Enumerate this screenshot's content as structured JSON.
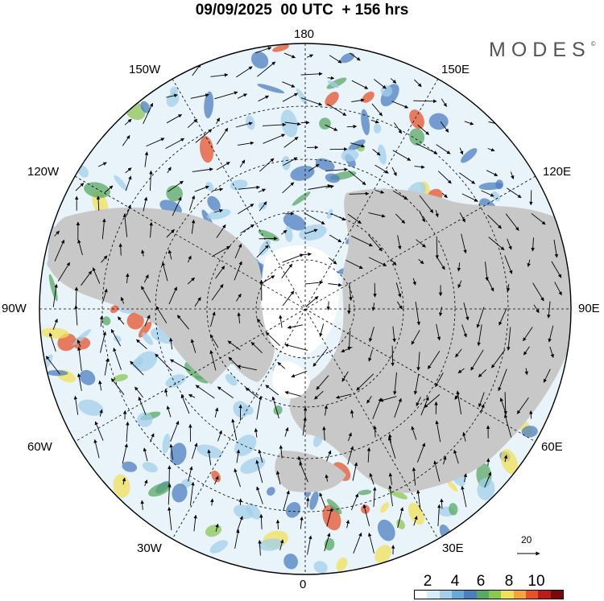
{
  "title": "09/09/2025  00 UTC  + 156 hrs",
  "brand": "MODES",
  "brand_mark": "©",
  "longitude_labels": {
    "top": "180",
    "top_left": "150W",
    "top_right": "150E",
    "upper_left": "120W",
    "upper_right": "120E",
    "left": "90W",
    "right": "90E",
    "lower_left": "60W",
    "lower_right": "60E",
    "bottom_left": "30W",
    "bottom_right": "30E",
    "bottom": "0"
  },
  "reference_vector": {
    "label": "20"
  },
  "colorbar": {
    "tick_labels": [
      "2",
      "4",
      "6",
      "8",
      "10"
    ],
    "colors": [
      "#ffffff",
      "#d6ecf8",
      "#a3cfea",
      "#6aa8d8",
      "#4d7fc0",
      "#5aa865",
      "#8cc653",
      "#f1e15a",
      "#f4a340",
      "#e5532b",
      "#b81c1c",
      "#7a0a0a"
    ]
  },
  "colors": {
    "land": "#c8c8c8",
    "contour_low": "#a3cfea",
    "contour_mid": "#4d7fc0",
    "contour_high": "#e5532b"
  }
}
